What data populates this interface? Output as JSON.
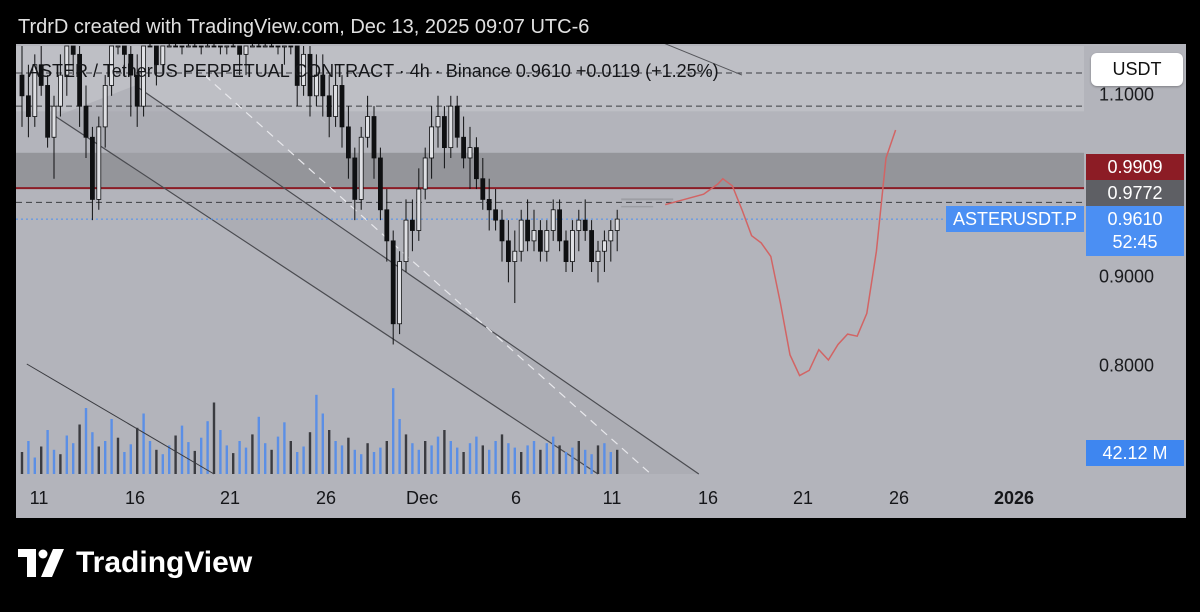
{
  "caption": "TrdrD created with TradingView.com, Dec 13, 2025 09:07 UTC-6",
  "symbol_line": "ASTER / TetherUS PERPETUAL CONTRACT · 4h · Binance  0.9610  +0.0119 (+1.25%)",
  "currency_button": "USDT",
  "brand": "TradingView",
  "colors": {
    "background": "#b3b4bb",
    "candle": "#0f1012",
    "volume_blue": "#5b8fe6",
    "volume_dark": "#3a3b40",
    "resistance_line": "#8c1c25",
    "projection": "#d26464",
    "price_line": "#4b8ff3"
  },
  "chart_data": {
    "type": "candlestick",
    "timeframe": "4h",
    "exchange": "Binance",
    "last_price": 0.961,
    "change": "+0.0119",
    "change_pct": "+1.25%",
    "price_axis": {
      "ticks": [
        "1.1000",
        "0.9000",
        "0.8000"
      ],
      "range": [
        0.715,
        1.13
      ]
    },
    "time_axis": {
      "ticks": [
        "11",
        "16",
        "21",
        "26",
        "Dec",
        "6",
        "11",
        "16",
        "21",
        "26",
        "2026"
      ],
      "bold_ticks": [
        "2026"
      ]
    },
    "levels": [
      {
        "label": "0.9909",
        "value": 0.9909,
        "style": "solid",
        "color": "#8c1c25"
      },
      {
        "label": "0.9772",
        "value": 0.9772,
        "style": "dashed"
      },
      {
        "value": 1.07,
        "style": "dashed"
      },
      {
        "value": 1.102,
        "style": "dashed"
      }
    ],
    "zones": [
      {
        "from": 0.991,
        "to": 1.025
      },
      {
        "from": 1.065,
        "to": 1.128
      }
    ],
    "price_label": {
      "ticker": "ASTERUSDT.P",
      "price": "0.9610",
      "countdown": "52:45"
    },
    "volume_label": "42.12 M",
    "channel": [
      {
        "x1": 11.8,
        "y1": 1.09,
        "x2": 70.5,
        "y2": 0.715
      },
      {
        "x1": 3.5,
        "y1": 1.06,
        "x2": 60.0,
        "y2": 0.715
      }
    ],
    "channel_midline": {
      "x1": 19.0,
      "y1": 1.1,
      "x2": 65.5,
      "y2": 0.715
    },
    "upper_channel_line": {
      "x1": 38.0,
      "y1": 1.24,
      "x2": 75.0,
      "y2": 1.1
    },
    "volume_trendline": {
      "x1": 0.5,
      "y1": 1.0,
      "x2": 20.0,
      "y2": 0.0
    },
    "candles_ohlc": [
      [
        1.1,
        1.13,
        1.05,
        1.08
      ],
      [
        1.08,
        1.11,
        1.04,
        1.06
      ],
      [
        1.06,
        1.12,
        1.05,
        1.11
      ],
      [
        1.11,
        1.14,
        1.08,
        1.09
      ],
      [
        1.09,
        1.1,
        1.03,
        1.04
      ],
      [
        1.04,
        1.08,
        1.0,
        1.07
      ],
      [
        1.07,
        1.12,
        1.06,
        1.1
      ],
      [
        1.1,
        1.15,
        1.08,
        1.13
      ],
      [
        1.13,
        1.17,
        1.1,
        1.12
      ],
      [
        1.12,
        1.13,
        1.05,
        1.07
      ],
      [
        1.07,
        1.09,
        1.02,
        1.04
      ],
      [
        1.04,
        1.05,
        0.96,
        0.98
      ],
      [
        0.98,
        1.06,
        0.97,
        1.05
      ],
      [
        1.05,
        1.1,
        1.03,
        1.09
      ],
      [
        1.09,
        1.16,
        1.08,
        1.15
      ],
      [
        1.15,
        1.22,
        1.12,
        1.2
      ],
      [
        1.2,
        1.21,
        1.1,
        1.12
      ],
      [
        1.12,
        1.14,
        1.06,
        1.1
      ],
      [
        1.1,
        1.12,
        1.05,
        1.07
      ],
      [
        1.07,
        1.2,
        1.06,
        1.18
      ],
      [
        1.18,
        1.23,
        1.14,
        1.16
      ],
      [
        1.16,
        1.18,
        1.09,
        1.11
      ],
      [
        1.11,
        1.19,
        1.1,
        1.17
      ],
      [
        1.17,
        1.24,
        1.14,
        1.22
      ],
      [
        1.22,
        1.24,
        1.14,
        1.16
      ],
      [
        1.16,
        1.19,
        1.12,
        1.14
      ],
      [
        1.14,
        1.23,
        1.13,
        1.21
      ],
      [
        1.21,
        1.24,
        1.15,
        1.18
      ],
      [
        1.18,
        1.2,
        1.12,
        1.15
      ],
      [
        1.15,
        1.21,
        1.13,
        1.19
      ],
      [
        1.19,
        1.24,
        1.16,
        1.18
      ],
      [
        1.18,
        1.2,
        1.12,
        1.14
      ],
      [
        1.14,
        1.19,
        1.12,
        1.17
      ],
      [
        1.17,
        1.21,
        1.15,
        1.16
      ],
      [
        1.16,
        1.18,
        1.1,
        1.12
      ],
      [
        1.12,
        1.17,
        1.1,
        1.15
      ],
      [
        1.15,
        1.23,
        1.14,
        1.21
      ],
      [
        1.21,
        1.24,
        1.16,
        1.18
      ],
      [
        1.18,
        1.22,
        1.15,
        1.2
      ],
      [
        1.2,
        1.24,
        1.17,
        1.19
      ],
      [
        1.19,
        1.21,
        1.12,
        1.14
      ],
      [
        1.14,
        1.18,
        1.11,
        1.16
      ],
      [
        1.16,
        1.2,
        1.12,
        1.13
      ],
      [
        1.13,
        1.15,
        1.07,
        1.09
      ],
      [
        1.09,
        1.14,
        1.08,
        1.12
      ],
      [
        1.12,
        1.13,
        1.06,
        1.08
      ],
      [
        1.08,
        1.12,
        1.07,
        1.1
      ],
      [
        1.1,
        1.12,
        1.06,
        1.08
      ],
      [
        1.08,
        1.1,
        1.04,
        1.06
      ],
      [
        1.06,
        1.11,
        1.05,
        1.09
      ],
      [
        1.09,
        1.1,
        1.03,
        1.05
      ],
      [
        1.05,
        1.07,
        1.0,
        1.02
      ],
      [
        1.02,
        1.03,
        0.96,
        0.98
      ],
      [
        0.98,
        1.05,
        0.97,
        1.04
      ],
      [
        1.04,
        1.08,
        1.03,
        1.06
      ],
      [
        1.06,
        1.07,
        1.0,
        1.02
      ],
      [
        1.02,
        1.03,
        0.96,
        0.97
      ],
      [
        0.97,
        0.99,
        0.92,
        0.94
      ],
      [
        0.94,
        0.95,
        0.84,
        0.86
      ],
      [
        0.86,
        0.93,
        0.85,
        0.92
      ],
      [
        0.92,
        0.98,
        0.91,
        0.96
      ],
      [
        0.96,
        0.98,
        0.93,
        0.95
      ],
      [
        0.95,
        1.01,
        0.94,
        0.99
      ],
      [
        0.99,
        1.03,
        0.98,
        1.02
      ],
      [
        1.02,
        1.07,
        1.0,
        1.05
      ],
      [
        1.05,
        1.08,
        1.03,
        1.06
      ],
      [
        1.06,
        1.07,
        1.01,
        1.03
      ],
      [
        1.03,
        1.08,
        1.02,
        1.07
      ],
      [
        1.07,
        1.08,
        1.03,
        1.04
      ],
      [
        1.04,
        1.06,
        1.01,
        1.02
      ],
      [
        1.02,
        1.05,
        0.99,
        1.03
      ],
      [
        1.03,
        1.04,
        0.99,
        1.0
      ],
      [
        1.0,
        1.02,
        0.97,
        0.98
      ],
      [
        0.98,
        1.0,
        0.95,
        0.97
      ],
      [
        0.97,
        0.99,
        0.95,
        0.96
      ],
      [
        0.96,
        0.97,
        0.92,
        0.94
      ],
      [
        0.94,
        0.96,
        0.9,
        0.92
      ],
      [
        0.92,
        0.95,
        0.88,
        0.93
      ],
      [
        0.93,
        0.97,
        0.92,
        0.96
      ],
      [
        0.96,
        0.98,
        0.93,
        0.94
      ],
      [
        0.94,
        0.97,
        0.93,
        0.95
      ],
      [
        0.95,
        0.96,
        0.92,
        0.93
      ],
      [
        0.93,
        0.96,
        0.92,
        0.95
      ],
      [
        0.95,
        0.98,
        0.94,
        0.97
      ],
      [
        0.97,
        0.98,
        0.93,
        0.94
      ],
      [
        0.94,
        0.95,
        0.91,
        0.92
      ],
      [
        0.92,
        0.96,
        0.91,
        0.95
      ],
      [
        0.95,
        0.97,
        0.93,
        0.96
      ],
      [
        0.96,
        0.98,
        0.94,
        0.95
      ],
      [
        0.95,
        0.96,
        0.91,
        0.92
      ],
      [
        0.92,
        0.94,
        0.9,
        0.93
      ],
      [
        0.93,
        0.95,
        0.91,
        0.94
      ],
      [
        0.94,
        0.96,
        0.92,
        0.95
      ],
      [
        0.95,
        0.97,
        0.93,
        0.961
      ]
    ],
    "volumes_pct": [
      20,
      30,
      15,
      25,
      40,
      22,
      18,
      35,
      28,
      45,
      60,
      38,
      25,
      30,
      50,
      33,
      20,
      27,
      42,
      55,
      30,
      22,
      18,
      26,
      35,
      44,
      29,
      21,
      33,
      48,
      65,
      40,
      26,
      19,
      30,
      24,
      36,
      52,
      28,
      22,
      34,
      47,
      30,
      20,
      25,
      38,
      72,
      55,
      40,
      30,
      26,
      33,
      22,
      18,
      28,
      20,
      24,
      30,
      78,
      50,
      36,
      28,
      22,
      30,
      26,
      34,
      40,
      30,
      24,
      20,
      28,
      34,
      26,
      22,
      30,
      36,
      28,
      24,
      20,
      26,
      30,
      22,
      28,
      34,
      26,
      20,
      24,
      30,
      22,
      18,
      26,
      28,
      20,
      22
    ],
    "projection_points": [
      [
        67.0,
        0.975
      ],
      [
        69.0,
        0.98
      ],
      [
        71.0,
        0.985
      ],
      [
        72.5,
        0.995
      ],
      [
        73.0,
        1.0
      ],
      [
        74.0,
        0.993
      ],
      [
        75.0,
        0.97
      ],
      [
        76.0,
        0.945
      ],
      [
        77.0,
        0.938
      ],
      [
        78.0,
        0.925
      ],
      [
        79.0,
        0.88
      ],
      [
        80.0,
        0.83
      ],
      [
        81.0,
        0.81
      ],
      [
        82.0,
        0.815
      ],
      [
        83.0,
        0.835
      ],
      [
        84.0,
        0.825
      ],
      [
        85.0,
        0.84
      ],
      [
        86.0,
        0.85
      ],
      [
        87.0,
        0.848
      ],
      [
        88.0,
        0.87
      ],
      [
        89.0,
        0.93
      ],
      [
        90.0,
        1.02
      ],
      [
        91.0,
        1.047
      ]
    ]
  }
}
